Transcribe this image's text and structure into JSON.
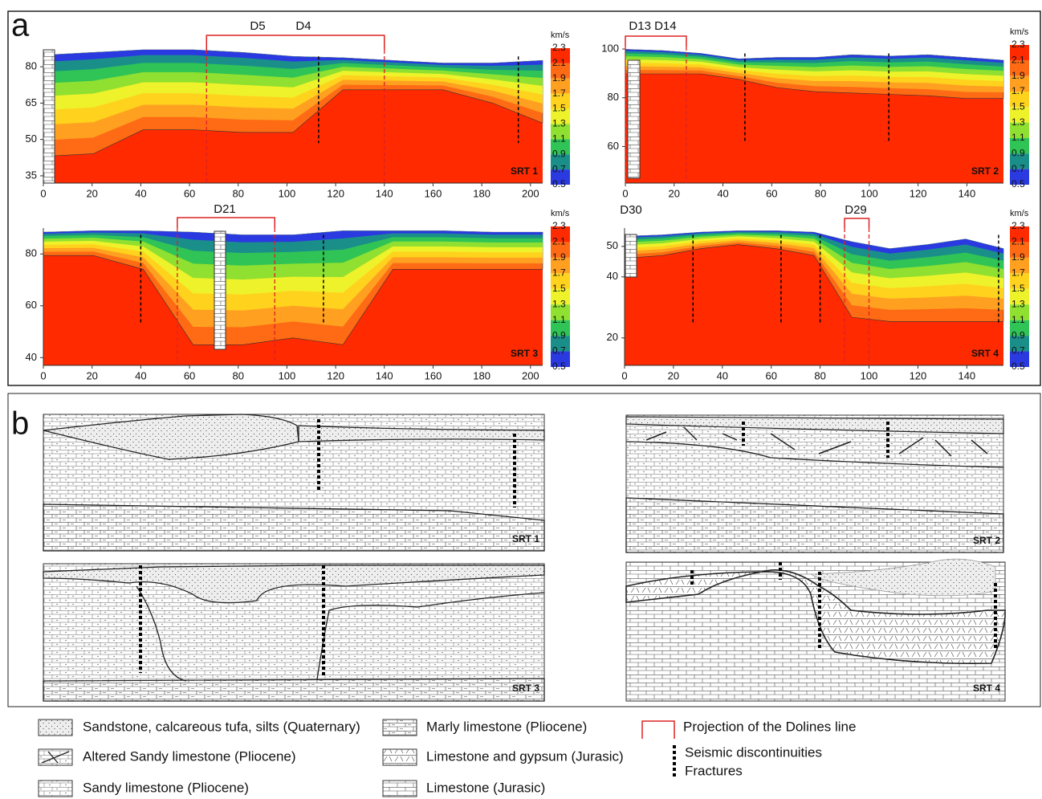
{
  "panel_a": {
    "label": "a",
    "units": "km/s",
    "colorbar_ticks": [
      2.3,
      2.1,
      1.9,
      1.7,
      1.5,
      1.3,
      1.1,
      0.9,
      0.7,
      0.5
    ],
    "sections": [
      {
        "name": "SRT 1",
        "xlim": [
          0,
          205
        ],
        "ylim": [
          32,
          87
        ],
        "xticks": [
          0,
          20,
          40,
          60,
          80,
          100,
          120,
          140,
          160,
          180,
          200
        ],
        "yticks": [
          35,
          50,
          65,
          80
        ],
        "doline_projection": [
          67,
          140
        ],
        "doline_labels": [
          "D5",
          "D4"
        ],
        "discontinuities": [
          113,
          195
        ]
      },
      {
        "name": "SRT 2",
        "xlim": [
          0,
          155
        ],
        "ylim": [
          45,
          101
        ],
        "xticks": [
          0,
          20,
          40,
          60,
          80,
          100,
          120,
          140
        ],
        "yticks": [
          60,
          80,
          100
        ],
        "doline_projection": [
          0,
          25
        ],
        "doline_labels": [
          "D13 D14"
        ],
        "discontinuities": [
          49,
          108
        ]
      },
      {
        "name": "SRT 3",
        "xlim": [
          0,
          205
        ],
        "ylim": [
          37,
          90
        ],
        "xticks": [
          0,
          20,
          40,
          60,
          80,
          100,
          120,
          140,
          160,
          180,
          200
        ],
        "yticks": [
          40,
          60,
          80
        ],
        "doline_projection": [
          55,
          95
        ],
        "doline_labels": [
          "D21"
        ],
        "discontinuities": [
          40,
          115
        ]
      },
      {
        "name": "SRT 4",
        "xlim": [
          0,
          155
        ],
        "ylim": [
          11,
          56
        ],
        "xticks": [
          0,
          20,
          40,
          60,
          80,
          100,
          120,
          140
        ],
        "yticks": [
          20,
          40,
          50
        ],
        "doline_projection": [
          90,
          100
        ],
        "doline_labels": [
          "D29"
        ],
        "extra_label": "D30",
        "discontinuities": [
          28,
          64,
          80,
          153
        ]
      }
    ]
  },
  "panel_b": {
    "label": "b",
    "sections": [
      "SRT 1",
      "SRT 2",
      "SRT 3",
      "SRT 4"
    ]
  },
  "legend": [
    "Sandstone, calcareous tufa, silts (Quaternary)",
    "Altered Sandy limestone (Pliocene)",
    "Sandy limestone (Pliocene)",
    "Marly limestone (Pliocene)",
    "Limestone and gypsum (Jurasic)",
    "Limestone (Jurasic)",
    "Projection of the Dolines line",
    "Seismic discontinuities",
    "Fractures"
  ]
}
